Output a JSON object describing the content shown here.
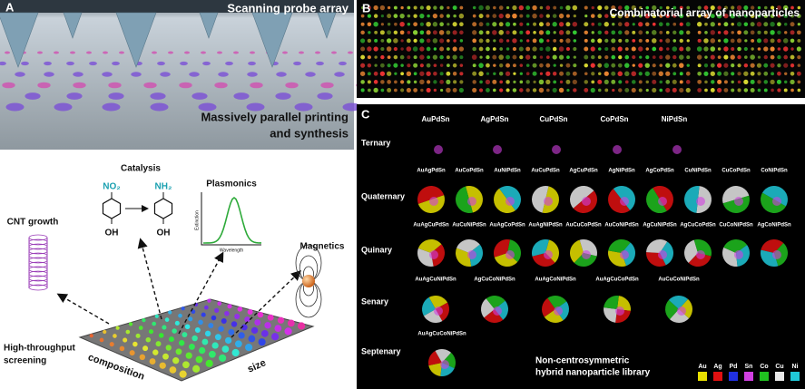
{
  "panel_a": {
    "label": "A",
    "title": "Scanning probe array",
    "caption": [
      "Massively parallel printing",
      "and synthesis"
    ]
  },
  "applications": {
    "catalysis": {
      "title": "Catalysis",
      "reactant_group": "NO₂",
      "product_group": "NH₂",
      "substituent": "OH"
    },
    "plasmonics": {
      "title": "Plasmonics",
      "y_label": "Extinction",
      "x_label": "Wavelength"
    },
    "cnt": {
      "title": "CNT growth"
    },
    "magnetics": {
      "title": "Magnetics"
    },
    "screening": [
      "High-throughput",
      "screening"
    ],
    "axis_composition": "composition",
    "axis_size": "size"
  },
  "panel_b": {
    "label": "B",
    "title": "Combinatorial array of nanoparticles"
  },
  "panel_c": {
    "label": "C",
    "row_labels": [
      "Ternary",
      "Quaternary",
      "Quinary",
      "Senary",
      "Septenary"
    ],
    "ternary_labels": [
      "AuPdSn",
      "AgPdSn",
      "CuPdSn",
      "CoPdSn",
      "NiPdSn"
    ],
    "quaternary_labels": [
      "AuAgPdSn",
      "AuCoPdSn",
      "AuNiPdSn",
      "AuCuPdSn",
      "AgCuPdSn",
      "AgNiPdSn",
      "AgCoPdSn",
      "CuNiPdSn",
      "CuCoPdSn",
      "CoNiPdSn"
    ],
    "quinary_labels": [
      "AuAgCuPdSn",
      "AuCuNiPdSn",
      "AuAgCoPdSn",
      "AuAgNiPdSn",
      "AuCuCoPdSn",
      "AuCoNiPdSn",
      "AgCuNiPdSn",
      "AgCuCoPdSn",
      "CuCoNiPdSn",
      "AgCoNiPdSn"
    ],
    "senary_labels": [
      "AuAgCuNiPdSn",
      "AgCuCoNiPdSn",
      "AuAgCoNiPdSn",
      "AuAgCuCoPdSn",
      "AuCuCoNiPdSn"
    ],
    "septenary_labels": [
      "AuAgCuCoNiPdSn"
    ],
    "caption": [
      "Non-centrosymmetric",
      "hybrid nanoparticle library"
    ],
    "legend": [
      {
        "name": "Au",
        "color": "#e8e000"
      },
      {
        "name": "Ag",
        "color": "#e01010"
      },
      {
        "name": "Pd",
        "color": "#2030e0"
      },
      {
        "name": "Sn",
        "color": "#d040e0"
      },
      {
        "name": "Co",
        "color": "#20c020"
      },
      {
        "name": "Cu",
        "color": "#e8e8e8"
      },
      {
        "name": "Ni",
        "color": "#20c8d8"
      }
    ]
  }
}
